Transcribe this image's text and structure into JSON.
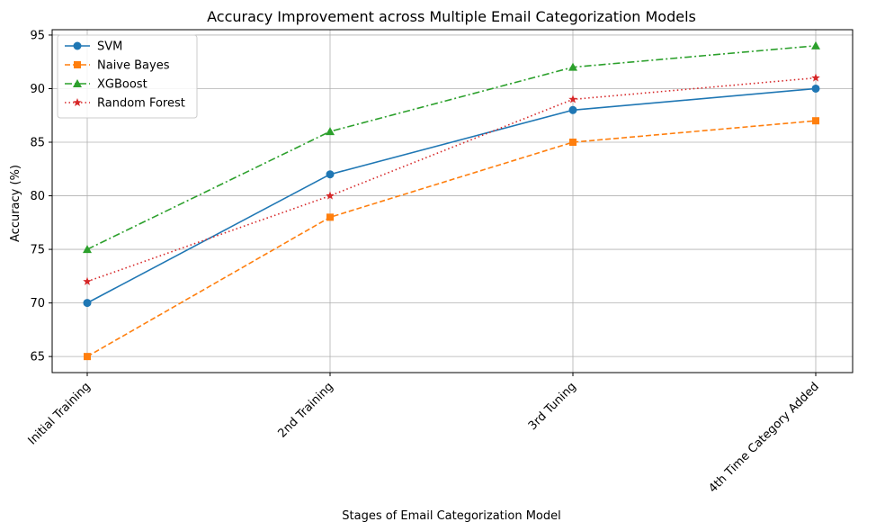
{
  "chart_data": {
    "type": "line",
    "title": "Accuracy Improvement across Multiple Email Categorization Models",
    "xlabel": "Stages of Email Categorization Model",
    "ylabel": "Accuracy (%)",
    "categories": [
      "Initial Training",
      "2nd Training",
      "3rd Tuning",
      "4th Time Category Added"
    ],
    "ylim": [
      63.5,
      95.5
    ],
    "yticks": [
      65,
      70,
      75,
      80,
      85,
      90,
      95
    ],
    "grid": true,
    "legend_position": "top-left",
    "series": [
      {
        "name": "SVM",
        "values": [
          70,
          82,
          88,
          90
        ],
        "color": "#1f77b4",
        "linestyle": "solid",
        "marker": "circle"
      },
      {
        "name": "Naive Bayes",
        "values": [
          65,
          78,
          85,
          87
        ],
        "color": "#ff7f0e",
        "linestyle": "dashed",
        "marker": "square"
      },
      {
        "name": "XGBoost",
        "values": [
          75,
          86,
          92,
          94
        ],
        "color": "#2ca02c",
        "linestyle": "dashdot",
        "marker": "triangle"
      },
      {
        "name": "Random Forest",
        "values": [
          72,
          80,
          89,
          91
        ],
        "color": "#d62728",
        "linestyle": "dotted",
        "marker": "star"
      }
    ]
  }
}
